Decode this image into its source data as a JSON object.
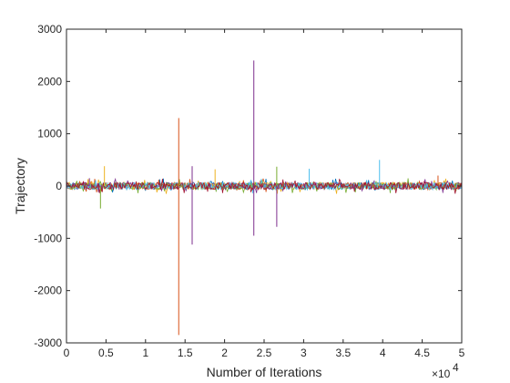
{
  "chart_data": {
    "type": "line",
    "title": "",
    "xlabel": "Number of Iterations",
    "ylabel": "Trajectory",
    "x_exponent_label": "×10",
    "x_exponent_power": "4",
    "xlim": [
      0,
      50000
    ],
    "ylim": [
      -3000,
      3000
    ],
    "x_tick_labels": [
      "0",
      "0.5",
      "1",
      "1.5",
      "2",
      "2.5",
      "3",
      "3.5",
      "4",
      "4.5",
      "5"
    ],
    "x_tick_values": [
      0,
      5000,
      10000,
      15000,
      20000,
      25000,
      30000,
      35000,
      40000,
      45000,
      50000
    ],
    "y_tick_labels": [
      "-3000",
      "-2000",
      "-1000",
      "0",
      "1000",
      "2000",
      "3000"
    ],
    "y_tick_values": [
      -3000,
      -2000,
      -1000,
      0,
      1000,
      2000,
      3000
    ],
    "grid": false,
    "legend": "none",
    "noise_band": [
      -150,
      150
    ],
    "series_colors": [
      "#0072BD",
      "#D95319",
      "#EDB120",
      "#7E2F8E",
      "#77AC30",
      "#4DBEEE",
      "#A2142F"
    ],
    "spikes": [
      {
        "x": 14200,
        "y": 1300,
        "series": "orange"
      },
      {
        "x": 14200,
        "y": -2850,
        "series": "orange"
      },
      {
        "x": 15900,
        "y": 380,
        "series": "purple"
      },
      {
        "x": 15900,
        "y": -1120,
        "series": "purple"
      },
      {
        "x": 23700,
        "y": 2400,
        "series": "purple"
      },
      {
        "x": 23700,
        "y": -950,
        "series": "purple"
      },
      {
        "x": 26600,
        "y": 370,
        "series": "green"
      },
      {
        "x": 26600,
        "y": -780,
        "series": "purple"
      },
      {
        "x": 39600,
        "y": 500,
        "series": "light-blue"
      },
      {
        "x": 4800,
        "y": 380,
        "series": "yellow"
      },
      {
        "x": 4300,
        "y": -430,
        "series": "green"
      },
      {
        "x": 30700,
        "y": 330,
        "series": "light-blue"
      },
      {
        "x": 18800,
        "y": 320,
        "series": "yellow"
      },
      {
        "x": 2900,
        "y": 150,
        "series": "purple"
      },
      {
        "x": 47000,
        "y": 200,
        "series": "orange"
      }
    ]
  }
}
